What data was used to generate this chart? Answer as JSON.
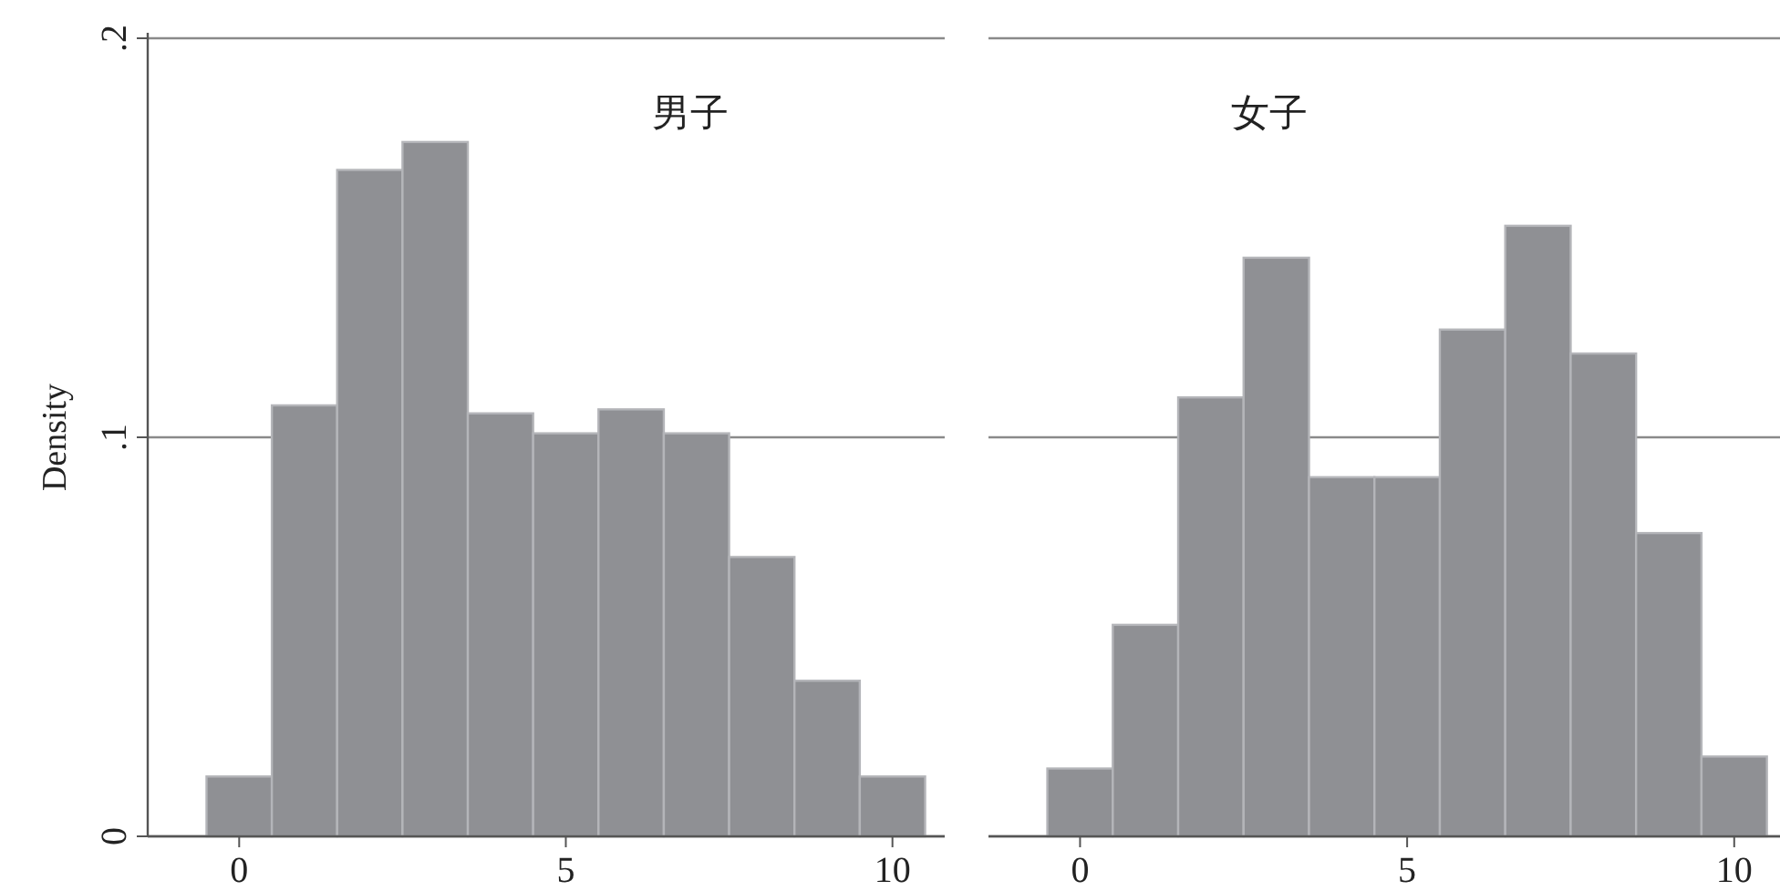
{
  "chart_data": [
    {
      "type": "histogram",
      "title": "男子",
      "ylabel": "Density",
      "bins": [
        -0.5,
        0.5,
        1.5,
        2.5,
        3.5,
        4.5,
        5.5,
        6.5,
        7.5,
        8.5,
        9.5,
        10.5
      ],
      "values": [
        0.015,
        0.108,
        0.167,
        0.174,
        0.106,
        0.101,
        0.107,
        0.101,
        0.07,
        0.039,
        0.015
      ],
      "color": "#8f9094",
      "xlim": [
        -1.4,
        10.8
      ],
      "xticks": [
        0,
        5,
        10
      ],
      "ylim": [
        0,
        0.2
      ],
      "yticks": [
        0,
        {
          "value": 0.1,
          "label": ".1"
        },
        {
          "value": 0.2,
          "label": ".2"
        }
      ],
      "grid": "y"
    },
    {
      "type": "histogram",
      "title": "女子",
      "bins": [
        -0.5,
        0.5,
        1.5,
        2.5,
        3.5,
        4.5,
        5.5,
        6.5,
        7.5,
        8.5,
        9.5,
        10.5
      ],
      "values": [
        0.017,
        0.053,
        0.11,
        0.145,
        0.09,
        0.09,
        0.127,
        0.153,
        0.121,
        0.076,
        0.02
      ],
      "color": "#8f9094",
      "xlim": [
        -1.4,
        10.7
      ],
      "xticks": [
        0,
        5,
        10
      ],
      "ylim": [
        0,
        0.2
      ],
      "yticks": [
        {
          "value": 0,
          "label": null
        },
        {
          "value": 0.1,
          "label": null
        },
        {
          "value": 0.2,
          "label": null
        }
      ],
      "grid": "y",
      "tick_labels": "x"
    }
  ]
}
